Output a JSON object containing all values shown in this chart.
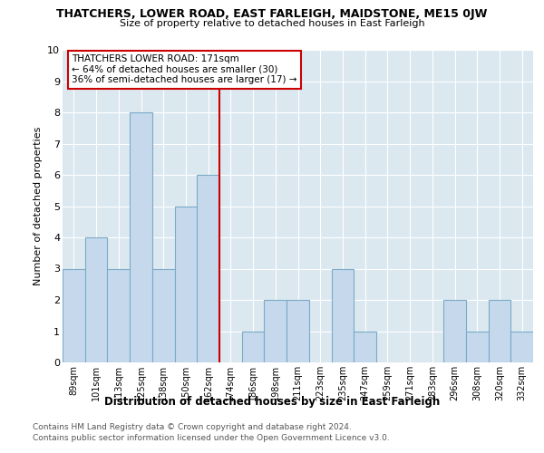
{
  "title1": "THATCHERS, LOWER ROAD, EAST FARLEIGH, MAIDSTONE, ME15 0JW",
  "title2": "Size of property relative to detached houses in East Farleigh",
  "xlabel": "Distribution of detached houses by size in East Farleigh",
  "ylabel": "Number of detached properties",
  "categories": [
    "89sqm",
    "101sqm",
    "113sqm",
    "125sqm",
    "138sqm",
    "150sqm",
    "162sqm",
    "174sqm",
    "186sqm",
    "198sqm",
    "211sqm",
    "223sqm",
    "235sqm",
    "247sqm",
    "259sqm",
    "271sqm",
    "283sqm",
    "296sqm",
    "308sqm",
    "320sqm",
    "332sqm"
  ],
  "values": [
    3,
    4,
    3,
    8,
    3,
    5,
    6,
    0,
    1,
    2,
    2,
    0,
    3,
    1,
    0,
    0,
    0,
    2,
    1,
    2,
    1
  ],
  "bar_color": "#c6d9ec",
  "bar_edge_color": "#7aaac8",
  "vline_color": "#cc0000",
  "annotation_line1": "THATCHERS LOWER ROAD: 171sqm",
  "annotation_line2": "← 64% of detached houses are smaller (30)",
  "annotation_line3": "36% of semi-detached houses are larger (17) →",
  "annotation_box_color": "#cc0000",
  "ylim": [
    0,
    10
  ],
  "yticks": [
    0,
    1,
    2,
    3,
    4,
    5,
    6,
    7,
    8,
    9,
    10
  ],
  "footer1": "Contains HM Land Registry data © Crown copyright and database right 2024.",
  "footer2": "Contains public sector information licensed under the Open Government Licence v3.0.",
  "bg_color": "#ffffff",
  "plot_bg_color": "#dce8f0"
}
